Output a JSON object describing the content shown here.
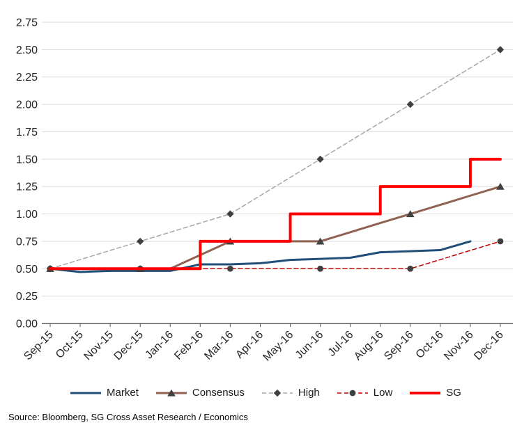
{
  "source_note": "Source: Bloomberg, SG Cross Asset Research / Economics",
  "chart_data": {
    "type": "line",
    "title": "",
    "xlabel": "",
    "ylabel": "",
    "categories": [
      "Sep-15",
      "Oct-15",
      "Nov-15",
      "Dec-15",
      "Jan-16",
      "Feb-16",
      "Mar-16",
      "Apr-16",
      "May-16",
      "Jun-16",
      "Jul-16",
      "Aug-16",
      "Sep-16",
      "Oct-16",
      "Nov-16",
      "Dec-16"
    ],
    "y_ticks": [
      "0.00",
      "0.25",
      "0.50",
      "0.75",
      "1.00",
      "1.25",
      "1.50",
      "1.75",
      "2.00",
      "2.25",
      "2.50",
      "2.75"
    ],
    "ylim": [
      0,
      2.75
    ],
    "grid": true,
    "legend_position": "bottom",
    "background": "#FFFFFF",
    "grid_color": "#D9D9D9",
    "axis_color": "#595959",
    "series": [
      {
        "name": "Market",
        "color": "#1F4E79",
        "width": 3,
        "dash": null,
        "marker": null,
        "marker_color": null,
        "marker_every": null,
        "step": false,
        "values": [
          0.5,
          0.47,
          0.48,
          0.48,
          0.48,
          0.54,
          0.54,
          0.55,
          0.58,
          0.59,
          0.6,
          0.65,
          0.66,
          0.67,
          0.75,
          null
        ]
      },
      {
        "name": "Consensus",
        "color": "#8E6150",
        "width": 3,
        "dash": null,
        "marker": "triangle",
        "marker_color": "#404040",
        "marker_every": 3,
        "step": false,
        "values": [
          0.5,
          0.5,
          0.5,
          0.5,
          0.5,
          0.625,
          0.75,
          0.75,
          0.75,
          0.75,
          0.833,
          0.917,
          1.0,
          1.083,
          1.167,
          1.25
        ]
      },
      {
        "name": "High",
        "color": "#A6A6A6",
        "width": 1.5,
        "dash": "6 4",
        "marker": "diamond",
        "marker_color": "#404040",
        "marker_every": 3,
        "step": false,
        "values": [
          0.5,
          0.583,
          0.667,
          0.75,
          0.833,
          0.917,
          1.0,
          1.167,
          1.333,
          1.5,
          1.667,
          1.833,
          2.0,
          2.167,
          2.333,
          2.5
        ]
      },
      {
        "name": "Low",
        "color": "#C00000",
        "width": 1.5,
        "dash": "6 4",
        "marker": "circle",
        "marker_color": "#404040",
        "marker_every": 3,
        "step": false,
        "values": [
          0.5,
          0.5,
          0.5,
          0.5,
          0.5,
          0.5,
          0.5,
          0.5,
          0.5,
          0.5,
          0.5,
          0.5,
          0.5,
          0.583,
          0.667,
          0.75
        ]
      },
      {
        "name": "SG",
        "color": "#FF0000",
        "width": 4,
        "dash": null,
        "marker": null,
        "marker_color": null,
        "marker_every": null,
        "step": true,
        "values": [
          0.5,
          0.5,
          0.5,
          0.5,
          0.5,
          0.75,
          0.75,
          0.75,
          1.0,
          1.0,
          1.0,
          1.25,
          1.25,
          1.25,
          1.5,
          1.5
        ]
      }
    ]
  }
}
